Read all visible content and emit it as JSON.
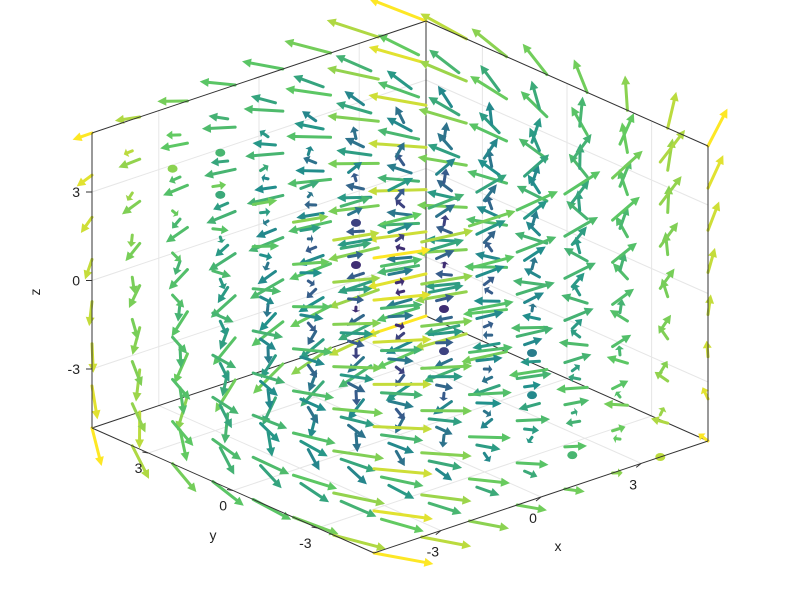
{
  "chart_data": {
    "type": "quiver3d",
    "title": "",
    "xlabel": "x",
    "ylabel": "y",
    "zlabel": "z",
    "xlim": [
      -5,
      5
    ],
    "ylim": [
      -5,
      5
    ],
    "zlim": [
      -5,
      5
    ],
    "grid_values": [
      -5,
      -3.5714,
      -2.1429,
      -0.7143,
      0.7143,
      2.1429,
      3.5714,
      5
    ],
    "x_ticks": [
      -3,
      0,
      3
    ],
    "y_ticks": [
      -3,
      0,
      3
    ],
    "z_ticks": [
      -3,
      0,
      3
    ],
    "x_tick_labels": [
      "-3",
      "0",
      "3"
    ],
    "y_tick_labels": [
      "-3",
      "0",
      "3"
    ],
    "z_tick_labels": [
      "-3",
      "0",
      "3"
    ],
    "grid": true,
    "colormap": "viridis",
    "field_description": "swirling vector field; arrow color encodes vector magnitude (purple small, yellow large)"
  },
  "colors": {
    "axes": "#333333",
    "grid": "#e6e6e6",
    "cmap_stops": [
      "#440154",
      "#3b528b",
      "#21918c",
      "#5ec962",
      "#fde725"
    ]
  }
}
